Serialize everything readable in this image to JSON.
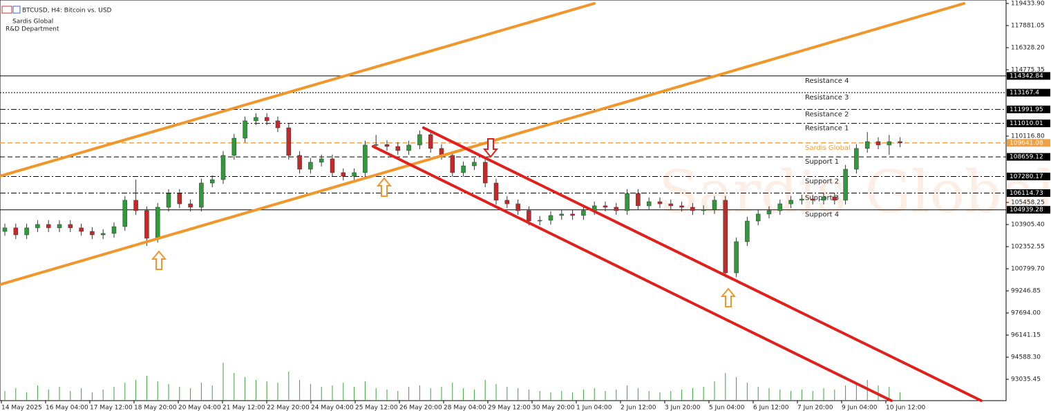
{
  "chart_data": {
    "type": "candlestick",
    "title": "BTCUSD, H4:  Bitcoin vs. USD",
    "company": "Sardis Global",
    "department": "R&D Department",
    "watermark": "Sardis Global",
    "up_color": "#2e9a3a",
    "down_color": "#c62828",
    "ylim": [
      91535,
      119676
    ],
    "yticks": [
      {
        "value": 119433.9,
        "label": "119433.90"
      },
      117881.05,
      {
        "value": 116328.2,
        "label": "116328.20"
      },
      114775.35,
      {
        "value": 110116.8,
        "label": "110116.80"
      },
      105458.25,
      {
        "value": 103905.4,
        "label": "103905.40"
      },
      102352.55,
      {
        "value": 100799.7,
        "label": "100799.70"
      },
      99246.85,
      {
        "value": 97694,
        "label": "97694.00"
      },
      96141.15,
      {
        "value": 94588.3,
        "label": "94588.30"
      },
      93035.45
    ],
    "x_labels": [
      "14 May 2025",
      "16 May 04:00",
      "17 May 12:00",
      "18 May 20:00",
      "20 May 04:00",
      "21 May 12:00",
      "22 May 20:00",
      "24 May 04:00",
      "25 May 12:00",
      "26 May 20:00",
      "28 May 04:00",
      "29 May 12:00",
      "30 May 20:00",
      "1 Jun 04:00",
      "2 Jun 12:00",
      "3 Jun 20:00",
      "5 Jun 04:00",
      "6 Jun 12:00",
      "7 Jun 20:00",
      "9 Jun 04:00",
      "10 Jun 12:00"
    ],
    "levels": [
      {
        "name": "Resistance 4",
        "value": 114342.84,
        "style": "solid",
        "color": "#000000"
      },
      {
        "name": "Resistance 3",
        "value": 113167.4,
        "style": "dotted",
        "color": "#000000"
      },
      {
        "name": "Resistance 2",
        "value": 111991.95,
        "style": "dashdot",
        "color": "#000000"
      },
      {
        "name": "Resistance 1",
        "value": 111010.01,
        "style": "dashdot",
        "color": "#000000"
      },
      {
        "name": "Sardis Global",
        "value": 109641.08,
        "style": "dashed",
        "color": "#f0a040"
      },
      {
        "name": "Support 1",
        "value": 108659.12,
        "style": "dashed",
        "color": "#000000"
      },
      {
        "name": "Support 2",
        "value": 107280.17,
        "style": "dashdot",
        "color": "#000000"
      },
      {
        "name": "Support 3",
        "value": 106114.73,
        "style": "dashdot",
        "color": "#000000"
      },
      {
        "name": "Support 4",
        "value": 104939.28,
        "style": "solid",
        "color": "#000000"
      }
    ],
    "ohlc": [
      [
        103420,
        103970,
        103120,
        103670
      ],
      [
        103670,
        103970,
        102880,
        103180
      ],
      [
        103180,
        103970,
        102880,
        103670
      ],
      [
        103670,
        104210,
        103370,
        103910
      ],
      [
        103910,
        104210,
        103370,
        103670
      ],
      [
        103670,
        104210,
        103370,
        103910
      ],
      [
        103910,
        104210,
        103370,
        103670
      ],
      [
        103670,
        103970,
        103120,
        103420
      ],
      [
        103420,
        103720,
        102880,
        103180
      ],
      [
        103180,
        103580,
        102880,
        103280
      ],
      [
        103280,
        104060,
        102980,
        103760
      ],
      [
        103760,
        105910,
        103460,
        105610
      ],
      [
        105610,
        107060,
        104580,
        104880
      ],
      [
        104880,
        105180,
        102400,
        102940
      ],
      [
        102940,
        105420,
        102640,
        105120
      ],
      [
        105120,
        106390,
        104820,
        106090
      ],
      [
        106090,
        106390,
        105060,
        105360
      ],
      [
        105360,
        105660,
        104820,
        105120
      ],
      [
        105120,
        107120,
        104820,
        106820
      ],
      [
        106820,
        107360,
        106520,
        107060
      ],
      [
        107060,
        109060,
        106760,
        108760
      ],
      [
        108760,
        110270,
        108460,
        109970
      ],
      [
        109970,
        111490,
        109670,
        111190
      ],
      [
        111190,
        111730,
        110890,
        111430
      ],
      [
        111430,
        111730,
        110890,
        111190
      ],
      [
        111190,
        111490,
        110400,
        110700
      ],
      [
        110700,
        111000,
        108460,
        108760
      ],
      [
        108760,
        109060,
        107490,
        107790
      ],
      [
        107790,
        108580,
        107490,
        108280
      ],
      [
        108280,
        108820,
        107980,
        108520
      ],
      [
        108520,
        108820,
        107250,
        107550
      ],
      [
        107550,
        107850,
        107000,
        107300
      ],
      [
        107300,
        107850,
        107000,
        107550
      ],
      [
        107550,
        109790,
        107250,
        109490
      ],
      [
        109490,
        110200,
        109190,
        109520
      ],
      [
        109520,
        109820,
        109090,
        109390
      ],
      [
        109390,
        109690,
        108800,
        109100
      ],
      [
        109100,
        109790,
        108800,
        109490
      ],
      [
        109490,
        110520,
        109190,
        110220
      ],
      [
        110220,
        110520,
        108950,
        109250
      ],
      [
        109250,
        109550,
        108460,
        108760
      ],
      [
        108760,
        109060,
        107250,
        107550
      ],
      [
        107550,
        108330,
        107250,
        108030
      ],
      [
        108030,
        108580,
        107730,
        108280
      ],
      [
        108280,
        108580,
        106520,
        106820
      ],
      [
        106820,
        107120,
        105310,
        105610
      ],
      [
        105610,
        105910,
        105060,
        105360
      ],
      [
        105360,
        105660,
        104580,
        104880
      ],
      [
        104880,
        105180,
        103850,
        104150
      ],
      [
        104150,
        104500,
        103850,
        104200
      ],
      [
        104200,
        104840,
        103900,
        104540
      ],
      [
        104540,
        104940,
        104240,
        104640
      ],
      [
        104640,
        104940,
        104240,
        104540
      ],
      [
        104540,
        105180,
        104240,
        104880
      ],
      [
        104880,
        105520,
        104580,
        105220
      ],
      [
        105220,
        105520,
        104820,
        105120
      ],
      [
        105120,
        105420,
        104580,
        104880
      ],
      [
        104880,
        106390,
        104580,
        106090
      ],
      [
        106090,
        106390,
        104920,
        105220
      ],
      [
        105220,
        105810,
        104920,
        105510
      ],
      [
        105510,
        105810,
        105060,
        105360
      ],
      [
        105360,
        105660,
        104920,
        105220
      ],
      [
        105220,
        105520,
        104820,
        105120
      ],
      [
        105120,
        105420,
        104580,
        104880
      ],
      [
        104880,
        105250,
        104580,
        104950
      ],
      [
        104950,
        105910,
        104650,
        105610
      ],
      [
        105610,
        105910,
        100200,
        100510
      ],
      [
        100510,
        103000,
        100210,
        102700
      ],
      [
        102700,
        104450,
        102400,
        104150
      ],
      [
        104150,
        104940,
        103850,
        104640
      ],
      [
        104640,
        105180,
        104340,
        104880
      ],
      [
        104880,
        105660,
        104580,
        105360
      ],
      [
        105360,
        105910,
        105060,
        105610
      ],
      [
        105610,
        106000,
        105310,
        105700
      ],
      [
        105700,
        106000,
        105310,
        105610
      ],
      [
        105610,
        106150,
        105310,
        105850
      ],
      [
        105850,
        106150,
        105310,
        105610
      ],
      [
        105610,
        108090,
        105310,
        107790
      ],
      [
        107790,
        109550,
        107490,
        109250
      ],
      [
        109250,
        110400,
        108950,
        109730
      ],
      [
        109730,
        110030,
        109190,
        109490
      ],
      [
        109490,
        110200,
        108800,
        109730
      ],
      [
        109730,
        110030,
        109340,
        109640
      ]
    ],
    "volume": [
      14,
      18,
      12,
      22,
      16,
      20,
      14,
      18,
      12,
      16,
      20,
      26,
      30,
      36,
      28,
      24,
      20,
      18,
      26,
      22,
      55,
      40,
      34,
      30,
      28,
      26,
      42,
      30,
      24,
      20,
      22,
      26,
      20,
      28,
      18,
      16,
      14,
      20,
      22,
      18,
      20,
      26,
      18,
      16,
      30,
      24,
      20,
      18,
      16,
      14,
      12,
      14,
      12,
      16,
      18,
      14,
      16,
      22,
      18,
      14,
      12,
      14,
      16,
      18,
      20,
      28,
      40,
      34,
      26,
      20,
      18,
      16,
      14,
      16,
      14,
      18,
      16,
      22,
      26,
      30,
      22,
      20,
      12
    ]
  }
}
